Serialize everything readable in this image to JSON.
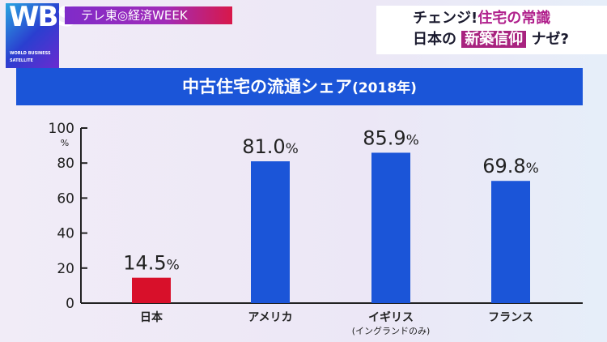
{
  "logo": {
    "letters": "WBS",
    "text": "WORLD BUSINESS SATELLITE"
  },
  "brand": "テレ東◎経済WEEK",
  "headline": {
    "line1_a": "チェンジ!",
    "line1_b": "住宅の常識",
    "line2_a": "日本の",
    "line2_hl": "新築信仰",
    "line2_b": "ナゼ?"
  },
  "colors": {
    "bar": "#1b55d8",
    "highlight": "#d8102a",
    "banner": "#1b55d8"
  },
  "chart_data": {
    "type": "bar",
    "title": "中古住宅の流通シェア",
    "title_suffix": "(2018年)",
    "ylabel": "%",
    "ylim": [
      0,
      100
    ],
    "yticks": [
      0,
      20,
      40,
      60,
      80,
      100
    ],
    "categories": [
      "日本",
      "アメリカ",
      "イギリス",
      "フランス"
    ],
    "category_notes": [
      "",
      "",
      "(イングランドのみ)",
      ""
    ],
    "values": [
      14.5,
      81.0,
      85.9,
      69.8
    ],
    "labels": [
      "14.5",
      "81.0",
      "85.9",
      "69.8"
    ],
    "label_unit": "%",
    "grid": false
  }
}
